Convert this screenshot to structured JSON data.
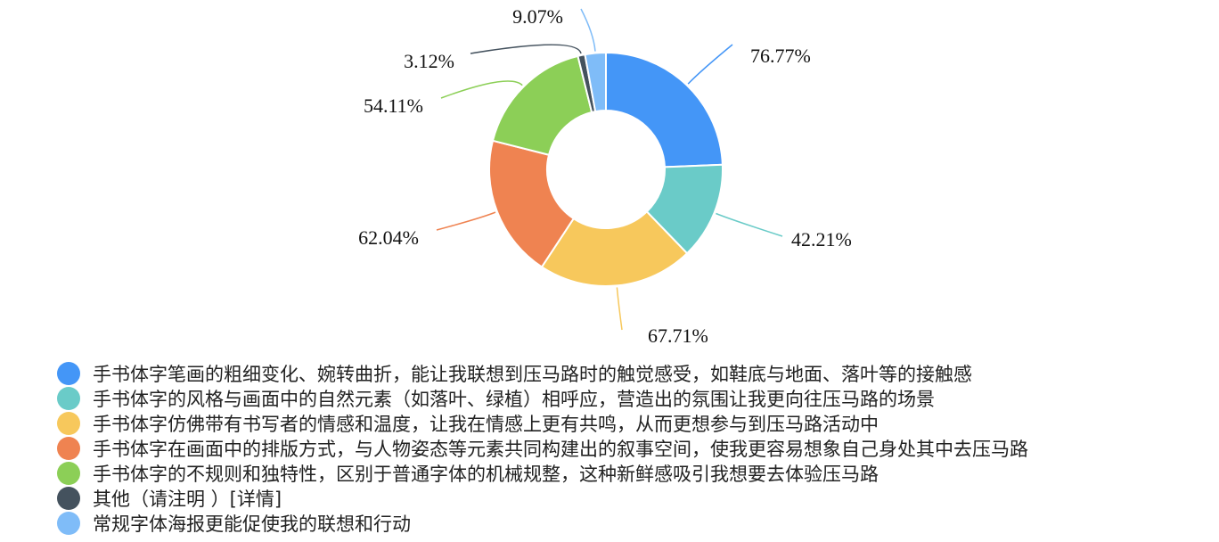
{
  "chart_data": {
    "type": "pie",
    "variant": "donut",
    "legend_position": "bottom-left",
    "series": [
      {
        "name": "手书体字笔画的粗细变化、婉转曲折，能让我联想到压马路时的触觉感受，如鞋底与地面、落叶等的接触感",
        "value": 76.77,
        "label": "76.77%",
        "color": "#4496f7"
      },
      {
        "name": "手书体字的风格与画面中的自然元素（如落叶、绿植）相呼应，营造出的氛围让我更向往压马路的场景",
        "value": 42.21,
        "label": "42.21%",
        "color": "#6acbc8"
      },
      {
        "name": "手书体字仿佛带有书写者的情感和温度，让我在情感上更有共鸣，从而更想参与到压马路活动中",
        "value": 67.71,
        "label": "67.71%",
        "color": "#f7c85c"
      },
      {
        "name": "手书体字在画面中的排版方式，与人物姿态等元素共同构建出的叙事空间，使我更容易想象自己身处其中去压马路",
        "value": 62.04,
        "label": "62.04%",
        "color": "#ef8351"
      },
      {
        "name": "手书体字的不规则和独特性，区别于普通字体的机械规整，这种新鲜感吸引我想要去体验压马路",
        "value": 54.11,
        "label": "54.11%",
        "color": "#8ccf57"
      },
      {
        "name": "其他（请注明 ）[详情]",
        "value": 3.12,
        "label": "3.12%",
        "color": "#44525e"
      },
      {
        "name": "常规字体海报更能促使我的联想和行动",
        "value": 9.07,
        "label": "9.07%",
        "color": "#7fbcf8"
      }
    ]
  }
}
